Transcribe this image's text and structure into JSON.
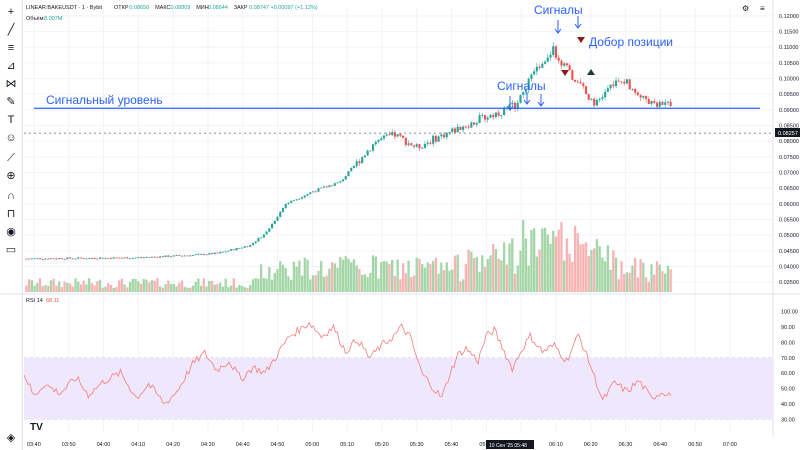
{
  "header": {
    "symbol": "LINEAR:BAKEUSDT · 1 · Bybit",
    "ohlc": [
      {
        "label": "ОТКР",
        "value": "0.08650"
      },
      {
        "label": "МАКС",
        "value": "0.08809"
      },
      {
        "label": "МИН",
        "value": "0.08644"
      },
      {
        "label": "ЗАКР",
        "value": "0.08747",
        "change": "+0.00097 (+1.12%)"
      }
    ],
    "volume_label": "Объём",
    "volume_value": "8.007M"
  },
  "annotations": {
    "level_label": "Сигнальный уровень",
    "signals_1": "Сигналы",
    "signals_2": "Сигналы",
    "add_position": "Добор позиции"
  },
  "price_tag": "0.08257",
  "crosshair_label": "10 Сен '25   05:48",
  "rsi_label": "RSI 14",
  "rsi_value": "68.11",
  "tv_logo": "TV",
  "colors": {
    "up": "#26a69a",
    "down": "#ef5350",
    "vol_up": "#a5d6a7",
    "vol_down": "#f8b4b4",
    "rsi": "#f57c7c",
    "level": "#2962ff",
    "rsi_band": "#efe7fb"
  },
  "chart_data": [
    {
      "type": "candlestick",
      "title": "LINEAR:BAKEUSDT · 1 · Bybit",
      "y_ticks": [
        "0.12000",
        "0.11500",
        "0.11000",
        "0.10500",
        "0.10000",
        "0.09500",
        "0.09000",
        "0.08500",
        "0.08000",
        "0.07500",
        "0.07000",
        "0.06500",
        "0.06000",
        "0.05500",
        "0.05000",
        "0.04500",
        "0.04000",
        "0.03500"
      ],
      "ylim": [
        0.0325,
        0.1225
      ],
      "x_ticks": [
        "03:40",
        "03:50",
        "04:00",
        "04:10",
        "04:20",
        "04:30",
        "04:40",
        "04:50",
        "05:00",
        "05:10",
        "05:20",
        "05:30",
        "05:40",
        "05:50",
        "06:00",
        "06:10",
        "06:20",
        "06:30",
        "06:40",
        "06:50",
        "07:00"
      ],
      "signal_level": 0.0905,
      "last_price": 0.08257
    },
    {
      "type": "line",
      "title": "RSI 14",
      "y_ticks": [
        "100.00",
        "90.00",
        "80.00",
        "70.00",
        "60.00",
        "50.00",
        "40.00",
        "30.00"
      ],
      "ylim": [
        27,
        103
      ],
      "band": [
        30,
        70
      ],
      "midline": 50
    }
  ]
}
